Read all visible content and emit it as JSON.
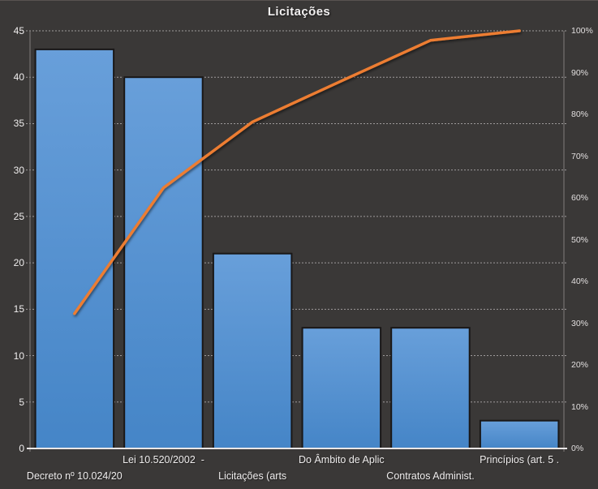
{
  "chart_data": {
    "type": "bar",
    "subtype": "pareto-combo",
    "title": "Licitações",
    "legend": "none",
    "categories": [
      "Decreto nº 10.024/20",
      "Lei 10.520/2002  -",
      "Licitações (arts",
      "Do Âmbito de Aplic",
      "Contratos Administ.",
      "Princípios (art. 5 ."
    ],
    "category_row": [
      "lower",
      "upper",
      "lower",
      "upper",
      "lower",
      "upper"
    ],
    "series": [
      {
        "id": "bar-values",
        "type": "bar",
        "axis": "left",
        "values": [
          43,
          40,
          21,
          13,
          13,
          3
        ]
      },
      {
        "id": "cumulative-percent-line",
        "type": "line",
        "axis": "right",
        "values": [
          32.3,
          62.4,
          78.2,
          88,
          97.7,
          100
        ]
      }
    ],
    "left_axis": {
      "min": 0,
      "max": 45,
      "step": 5,
      "tick_labels": [
        "0",
        "5",
        "10",
        "15",
        "20",
        "25",
        "30",
        "35",
        "40",
        "45"
      ]
    },
    "right_axis": {
      "min": 0,
      "max": 100,
      "step": 10,
      "tick_labels": [
        "0%",
        "10%",
        "20%",
        "30%",
        "40%",
        "50%",
        "60%",
        "70%",
        "80%",
        "90%",
        "100%"
      ]
    },
    "grid": {
      "horizontal": true,
      "style": "dashed"
    },
    "colors": {
      "background": "#3A3837",
      "bar_fill_top": "#689FDA",
      "bar_fill_bottom": "#4585C7",
      "bar_border": "#191717",
      "line": "#ED7D31",
      "gridline": "#B8B4B4",
      "axis_line_side": "#807C7B",
      "axis_line_bottom": "#E9E6E6",
      "text": "#EFEDED"
    }
  }
}
